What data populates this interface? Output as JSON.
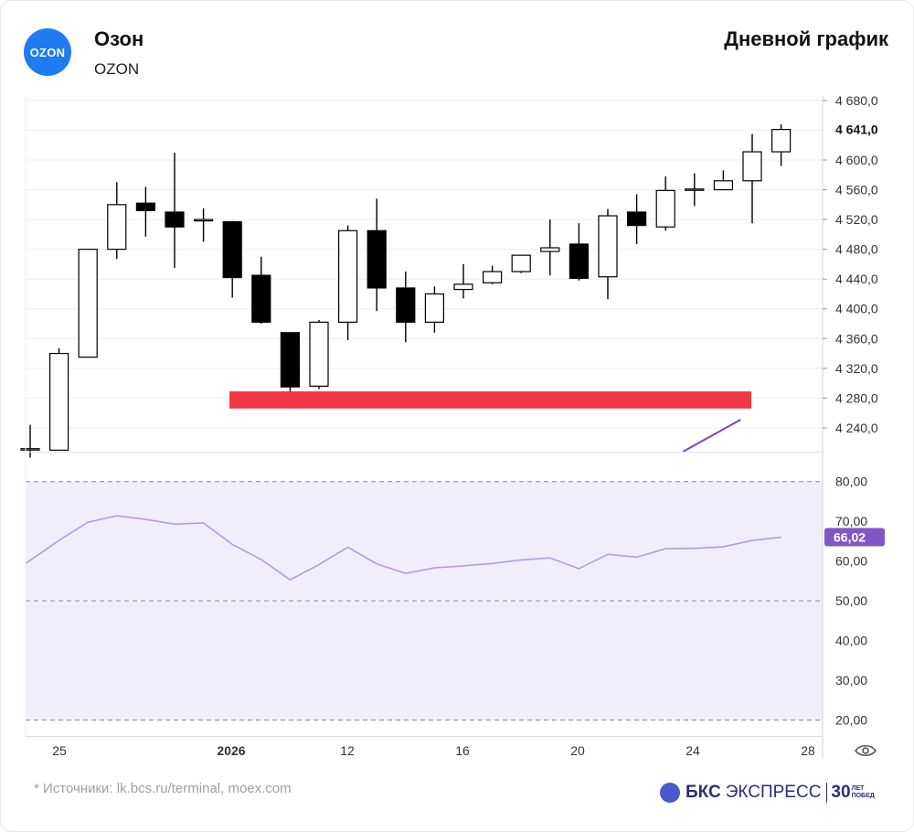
{
  "header": {
    "logo_text": "OZON",
    "title": "Озон",
    "ticker": "OZON",
    "chart_type_label": "Дневной график"
  },
  "footer": {
    "source": "* Источники: lk.bcs.ru/terminal, moex.com",
    "brand_name": "БКС",
    "brand_sub": "ЭКСПРЕСС",
    "brand_years": "30",
    "brand_years_l1": "ЛЕТ",
    "brand_years_l2": "ПОБЕД"
  },
  "colors": {
    "bull_fill": "#ffffff",
    "bear_fill": "#000000",
    "support_zone": "#f23645",
    "trend_line": "#7b3fd0",
    "rsi_line": "#b39ddb",
    "rsi_band": "#f1eefb",
    "rsi_label_bg": "#7e57c2",
    "current_price_label_bg": "#ffffff"
  },
  "chart_data": [
    {
      "type": "candlestick",
      "x_tick_labels": [
        "25",
        "2026",
        "12",
        "16",
        "20",
        "24",
        "28"
      ],
      "y_ticks": [
        4240,
        4280,
        4320,
        4360,
        4400,
        4440,
        4480,
        4520,
        4560,
        4600,
        4640,
        4680
      ],
      "ylim": [
        4208,
        4686
      ],
      "current_price": 4641,
      "current_price_label": "4 641,0",
      "candles": [
        {
          "o": 4212,
          "h": 4244,
          "l": 4200,
          "c": 4212
        },
        {
          "o": 4210,
          "h": 4347,
          "l": 4210,
          "c": 4340
        },
        {
          "o": 4335,
          "h": 4480,
          "l": 4335,
          "c": 4480
        },
        {
          "o": 4480,
          "h": 4570,
          "l": 4467,
          "c": 4540
        },
        {
          "o": 4542,
          "h": 4564,
          "l": 4497,
          "c": 4532
        },
        {
          "o": 4530,
          "h": 4610,
          "l": 4455,
          "c": 4510
        },
        {
          "o": 4520,
          "h": 4535,
          "l": 4490,
          "c": 4520
        },
        {
          "o": 4517,
          "h": 4518,
          "l": 4415,
          "c": 4442
        },
        {
          "o": 4445,
          "h": 4470,
          "l": 4380,
          "c": 4382
        },
        {
          "o": 4368,
          "h": 4368,
          "l": 4266,
          "c": 4295
        },
        {
          "o": 4296,
          "h": 4385,
          "l": 4292,
          "c": 4382
        },
        {
          "o": 4382,
          "h": 4512,
          "l": 4358,
          "c": 4505
        },
        {
          "o": 4505,
          "h": 4548,
          "l": 4397,
          "c": 4428
        },
        {
          "o": 4428,
          "h": 4450,
          "l": 4355,
          "c": 4382
        },
        {
          "o": 4382,
          "h": 4430,
          "l": 4368,
          "c": 4420
        },
        {
          "o": 4426,
          "h": 4460,
          "l": 4414,
          "c": 4433
        },
        {
          "o": 4435,
          "h": 4458,
          "l": 4433,
          "c": 4450
        },
        {
          "o": 4450,
          "h": 4472,
          "l": 4448,
          "c": 4472
        },
        {
          "o": 4477,
          "h": 4520,
          "l": 4445,
          "c": 4482
        },
        {
          "o": 4487,
          "h": 4515,
          "l": 4438,
          "c": 4441
        },
        {
          "o": 4443,
          "h": 4534,
          "l": 4413,
          "c": 4525
        },
        {
          "o": 4530,
          "h": 4554,
          "l": 4487,
          "c": 4512
        },
        {
          "o": 4510,
          "h": 4578,
          "l": 4505,
          "c": 4559
        },
        {
          "o": 4561,
          "h": 4582,
          "l": 4538,
          "c": 4561
        },
        {
          "o": 4560,
          "h": 4586,
          "l": 4560,
          "c": 4572
        },
        {
          "o": 4572,
          "h": 4635,
          "l": 4515,
          "c": 4611
        },
        {
          "o": 4611,
          "h": 4648,
          "l": 4592,
          "c": 4641
        }
      ],
      "support_zone": [
        4266,
        4289
      ],
      "trend_line": [
        {
          "x": 22.6,
          "y": 4208
        },
        {
          "x": 24.6,
          "y": 4251
        }
      ]
    },
    {
      "type": "line",
      "indicator": "RSI",
      "y_ticks": [
        20,
        30,
        40,
        50,
        60,
        70,
        80
      ],
      "ylim": [
        16,
        85
      ],
      "band": [
        20,
        80
      ],
      "dashed_levels": [
        20,
        50,
        80
      ],
      "current_value_label": "66,02",
      "values": [
        59.4,
        65.2,
        69.8,
        71.4,
        70.5,
        69.3,
        69.6,
        64.2,
        60.4,
        55.3,
        59.1,
        63.5,
        59.3,
        56.9,
        58.3,
        58.8,
        59.4,
        60.3,
        60.8,
        58.1,
        61.7,
        61.0,
        63.1,
        63.2,
        63.6,
        65.2,
        66.02
      ]
    }
  ]
}
